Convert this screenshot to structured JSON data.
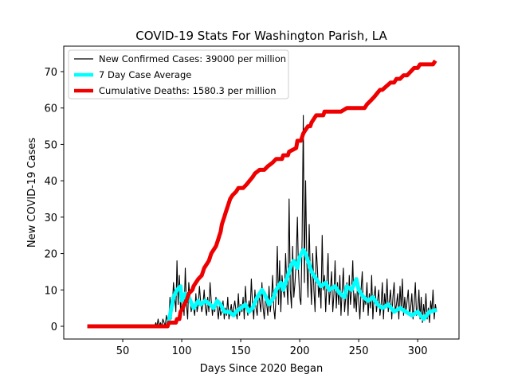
{
  "chart_data": {
    "type": "line",
    "title": "COVID-19 Stats For Washington Parish, LA",
    "xlabel": "Days Since 2020 Began",
    "ylabel": "New COVID-19 Cases",
    "xlim": [
      0,
      335
    ],
    "ylim": [
      -3.5,
      77
    ],
    "xticks": [
      50,
      100,
      150,
      200,
      250,
      300
    ],
    "yticks": [
      0,
      10,
      20,
      30,
      40,
      50,
      60,
      70
    ],
    "grid": false,
    "legend_position": "top-left",
    "colors": {
      "cases": "#000000",
      "average": "#00ffff",
      "deaths": "#ee0000"
    },
    "series": [
      {
        "name": "New Confirmed Cases: 39000 per million",
        "style": "thin",
        "x": [
          20,
          77,
          78,
          79,
          80,
          81,
          82,
          83,
          84,
          85,
          86,
          87,
          88,
          89,
          90,
          91,
          92,
          93,
          94,
          95,
          96,
          97,
          98,
          99,
          100,
          101,
          102,
          103,
          104,
          105,
          106,
          107,
          108,
          109,
          110,
          111,
          112,
          113,
          114,
          115,
          116,
          117,
          118,
          119,
          120,
          121,
          122,
          123,
          124,
          125,
          126,
          127,
          128,
          129,
          130,
          131,
          132,
          133,
          134,
          135,
          136,
          137,
          138,
          139,
          140,
          141,
          142,
          143,
          144,
          145,
          146,
          147,
          148,
          149,
          150,
          151,
          152,
          153,
          154,
          155,
          156,
          157,
          158,
          159,
          160,
          161,
          162,
          163,
          164,
          165,
          166,
          167,
          168,
          169,
          170,
          171,
          172,
          173,
          174,
          175,
          176,
          177,
          178,
          179,
          180,
          181,
          182,
          183,
          184,
          185,
          186,
          187,
          188,
          189,
          190,
          191,
          192,
          193,
          194,
          195,
          196,
          197,
          198,
          199,
          200,
          201,
          202,
          203,
          204,
          205,
          206,
          207,
          208,
          209,
          210,
          211,
          212,
          213,
          214,
          215,
          216,
          217,
          218,
          219,
          220,
          221,
          222,
          223,
          224,
          225,
          226,
          227,
          228,
          229,
          230,
          231,
          232,
          233,
          234,
          235,
          236,
          237,
          238,
          239,
          240,
          241,
          242,
          243,
          244,
          245,
          246,
          247,
          248,
          249,
          250,
          251,
          252,
          253,
          254,
          255,
          256,
          257,
          258,
          259,
          260,
          261,
          262,
          263,
          264,
          265,
          266,
          267,
          268,
          269,
          270,
          271,
          272,
          273,
          274,
          275,
          276,
          277,
          278,
          279,
          280,
          281,
          282,
          283,
          284,
          285,
          286,
          287,
          288,
          289,
          290,
          291,
          292,
          293,
          294,
          295,
          296,
          297,
          298,
          299,
          300,
          301,
          302,
          303,
          304,
          305,
          306,
          307,
          308,
          309,
          310,
          311,
          312,
          313,
          314,
          315,
          316
        ],
        "values": [
          0,
          0,
          1,
          0,
          2,
          0,
          1,
          0,
          2,
          1,
          0,
          3,
          1,
          0,
          8,
          2,
          5,
          12,
          8,
          4,
          18,
          6,
          14,
          4,
          10,
          8,
          3,
          16,
          6,
          2,
          12,
          8,
          4,
          6,
          5,
          3,
          9,
          4,
          6,
          11,
          7,
          4,
          6,
          10,
          5,
          3,
          8,
          4,
          12,
          7,
          3,
          6,
          4,
          8,
          5,
          2,
          6,
          3,
          4,
          7,
          2,
          5,
          3,
          8,
          2,
          4,
          6,
          3,
          5,
          7,
          4,
          2,
          9,
          3,
          6,
          4,
          8,
          2,
          11,
          5,
          3,
          7,
          4,
          13,
          6,
          2,
          10,
          5,
          3,
          9,
          7,
          4,
          12,
          5,
          2,
          8,
          6,
          3,
          11,
          4,
          7,
          14,
          5,
          2,
          9,
          22,
          6,
          18,
          4,
          14,
          10,
          8,
          20,
          12,
          6,
          35,
          10,
          5,
          22,
          8,
          12,
          18,
          30,
          15,
          8,
          6,
          24,
          58,
          12,
          40,
          18,
          8,
          28,
          14,
          6,
          20,
          10,
          4,
          22,
          16,
          8,
          12,
          5,
          25,
          10,
          14,
          4,
          12,
          20,
          6,
          10,
          15,
          4,
          9,
          18,
          5,
          12,
          6,
          14,
          3,
          10,
          16,
          4,
          8,
          12,
          3,
          14,
          6,
          10,
          18,
          5,
          9,
          4,
          12,
          7,
          2,
          10,
          15,
          4,
          8,
          6,
          12,
          3,
          9,
          5,
          14,
          2,
          8,
          11,
          4,
          7,
          10,
          3,
          6,
          12,
          2,
          9,
          5,
          13,
          4,
          7,
          10,
          2,
          8,
          12,
          4,
          6,
          9,
          2,
          11,
          5,
          13,
          3,
          8,
          4,
          7,
          10,
          3,
          5,
          9,
          2,
          6,
          12,
          3,
          4,
          10,
          2,
          8,
          1,
          6,
          3,
          9,
          2,
          5,
          1,
          7,
          4,
          10,
          2,
          6,
          4
        ]
      },
      {
        "name": "7 Day Case Average",
        "style": "thick",
        "x": [
          20,
          88,
          90,
          93,
          96,
          99,
          100,
          103,
          106,
          110,
          114,
          116,
          120,
          124,
          127,
          130,
          133,
          136,
          140,
          144,
          146,
          150,
          154,
          157,
          160,
          164,
          168,
          170,
          174,
          178,
          180,
          184,
          186,
          190,
          193,
          195,
          198,
          200,
          203,
          205,
          208,
          210,
          214,
          218,
          222,
          225,
          230,
          234,
          238,
          240,
          244,
          248,
          250,
          254,
          258,
          262,
          266,
          270,
          275,
          280,
          285,
          290,
          295,
          300,
          305,
          310,
          316
        ],
        "values": [
          0,
          0,
          3,
          8,
          10,
          11,
          7,
          9,
          8,
          5,
          7,
          6,
          7,
          6,
          5,
          7,
          6,
          4,
          4,
          3,
          4,
          5,
          6,
          4,
          5,
          8,
          10,
          9,
          6,
          8,
          10,
          12,
          10,
          14,
          17,
          18,
          16,
          19,
          21,
          20,
          17,
          15,
          13,
          11,
          12,
          10,
          11,
          9,
          8,
          11,
          10,
          13,
          10,
          8,
          7,
          8,
          6,
          5,
          6,
          4,
          5,
          4,
          3,
          4,
          2,
          4,
          4.5
        ]
      },
      {
        "name": "Cumulative Deaths: 1580.3 per million",
        "style": "thicker",
        "x": [
          20,
          85,
          88,
          89,
          95,
          96,
          98,
          99,
          101,
          102,
          104,
          106,
          109,
          110,
          112,
          114,
          117,
          119,
          121,
          123,
          125,
          127,
          129,
          130,
          131,
          132,
          133,
          134,
          135,
          136,
          137,
          138,
          140,
          141,
          143,
          146,
          148,
          150,
          152,
          155,
          160,
          162,
          166,
          170,
          173,
          177,
          180,
          185,
          186,
          190,
          191,
          197,
          198,
          201,
          202,
          203,
          205,
          207,
          209,
          210,
          212,
          214,
          220,
          221,
          225,
          230,
          235,
          240,
          245,
          250,
          255,
          257,
          260,
          263,
          268,
          270,
          277,
          280,
          282,
          285,
          288,
          291,
          294,
          297,
          300,
          302,
          305,
          310,
          313,
          315
        ],
        "values": [
          0,
          0,
          0,
          1,
          1,
          2,
          2,
          4,
          5,
          6,
          7,
          9,
          10,
          11,
          12,
          13,
          14,
          16,
          17,
          18,
          20,
          21,
          22,
          23,
          24,
          25,
          26,
          28,
          29,
          30,
          31,
          32,
          34,
          35,
          36,
          37,
          38,
          38,
          38,
          39,
          41,
          42,
          43,
          43,
          44,
          45,
          46,
          46,
          47,
          47,
          48,
          49,
          51,
          51,
          52,
          53,
          54,
          55,
          55,
          56,
          57,
          58,
          58,
          59,
          59,
          59,
          59,
          60,
          60,
          60,
          60,
          61,
          62,
          63,
          65,
          65,
          67,
          67,
          68,
          68,
          69,
          69,
          70,
          71,
          71,
          72,
          72,
          72,
          72,
          73
        ]
      }
    ]
  }
}
